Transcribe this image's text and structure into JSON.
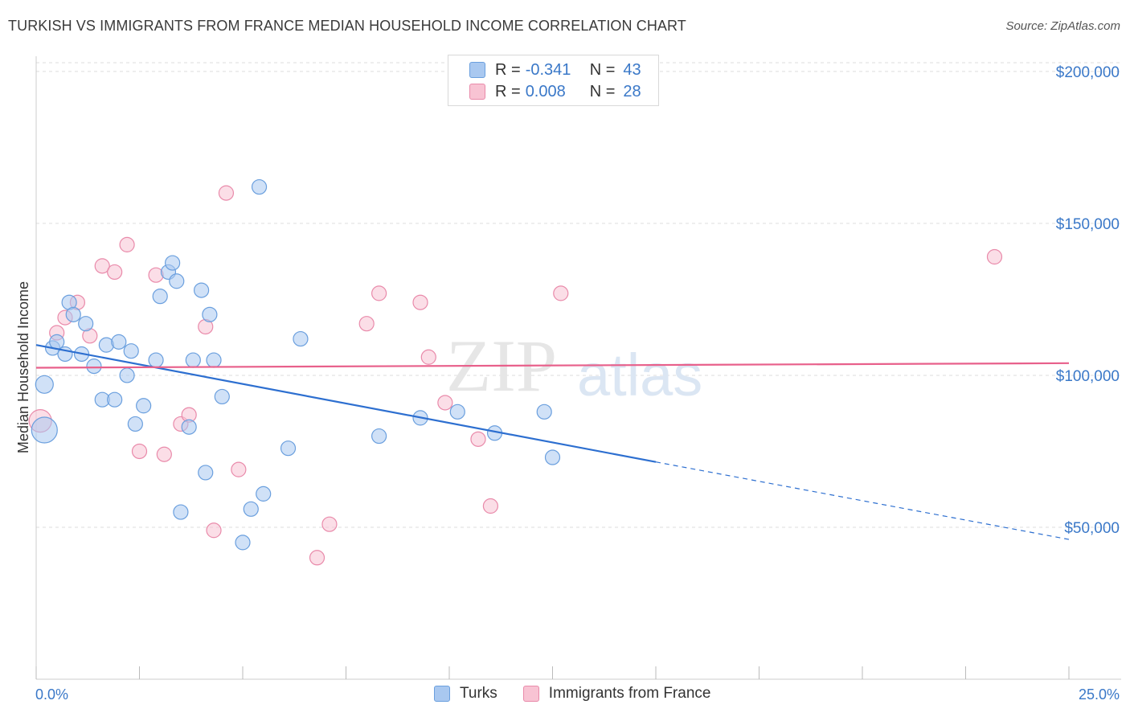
{
  "title": "TURKISH VS IMMIGRANTS FROM FRANCE MEDIAN HOUSEHOLD INCOME CORRELATION CHART",
  "source": "Source: ZipAtlas.com",
  "watermark": {
    "zip": "ZIP",
    "atlas": "atlas"
  },
  "legend": {
    "rows": [
      {
        "r_label": "R =",
        "r_value": "-0.341",
        "n_label": "N =",
        "n_value": "43",
        "color": "#a9c8f0",
        "border": "#6a9fde"
      },
      {
        "r_label": "R =",
        "r_value": "0.008",
        "n_label": "N =",
        "n_value": "28",
        "color": "#f8c3d3",
        "border": "#e98aaa"
      }
    ]
  },
  "bottom_legend": [
    {
      "label": "Turks",
      "color": "#a9c8f0",
      "border": "#6a9fde"
    },
    {
      "label": "Immigrants from France",
      "color": "#f8c3d3",
      "border": "#e98aaa"
    }
  ],
  "chart_data": {
    "type": "scatter",
    "xlabel": "",
    "ylabel": "Median Household Income",
    "xlim": [
      0,
      25
    ],
    "ylim": [
      0,
      205000
    ],
    "x_tick_labels": [
      "0.0%",
      "25.0%"
    ],
    "y_ticks": [
      {
        "value": 200000,
        "label": "$200,000"
      },
      {
        "value": 150000,
        "label": "$150,000"
      },
      {
        "value": 100000,
        "label": "$100,000"
      },
      {
        "value": 50000,
        "label": "$50,000"
      }
    ],
    "series": [
      {
        "name": "Turks",
        "color": "#a9c8f0",
        "stroke": "#6a9fde",
        "points": [
          [
            0.2,
            82000,
            16
          ],
          [
            0.2,
            97000,
            11
          ],
          [
            0.4,
            109000,
            9
          ],
          [
            0.5,
            111000,
            9
          ],
          [
            0.7,
            107000,
            9
          ],
          [
            0.8,
            124000,
            9
          ],
          [
            0.9,
            120000,
            9
          ],
          [
            1.1,
            107000,
            9
          ],
          [
            1.2,
            117000,
            9
          ],
          [
            1.4,
            103000,
            9
          ],
          [
            1.6,
            92000,
            9
          ],
          [
            1.7,
            110000,
            9
          ],
          [
            1.9,
            92000,
            9
          ],
          [
            2.0,
            111000,
            9
          ],
          [
            2.2,
            100000,
            9
          ],
          [
            2.3,
            108000,
            9
          ],
          [
            2.4,
            84000,
            9
          ],
          [
            2.6,
            90000,
            9
          ],
          [
            2.9,
            105000,
            9
          ],
          [
            3.0,
            126000,
            9
          ],
          [
            3.2,
            134000,
            9
          ],
          [
            3.3,
            137000,
            9
          ],
          [
            3.4,
            131000,
            9
          ],
          [
            3.5,
            55000,
            9
          ],
          [
            3.7,
            83000,
            9
          ],
          [
            3.8,
            105000,
            9
          ],
          [
            4.0,
            128000,
            9
          ],
          [
            4.1,
            68000,
            9
          ],
          [
            4.2,
            120000,
            9
          ],
          [
            4.3,
            105000,
            9
          ],
          [
            4.5,
            93000,
            9
          ],
          [
            5.0,
            45000,
            9
          ],
          [
            5.2,
            56000,
            9
          ],
          [
            5.4,
            162000,
            9
          ],
          [
            5.5,
            61000,
            9
          ],
          [
            6.1,
            76000,
            9
          ],
          [
            6.4,
            112000,
            9
          ],
          [
            8.3,
            80000,
            9
          ],
          [
            9.3,
            86000,
            9
          ],
          [
            10.2,
            88000,
            9
          ],
          [
            11.1,
            81000,
            9
          ],
          [
            12.3,
            88000,
            9
          ],
          [
            12.5,
            73000,
            9
          ]
        ]
      },
      {
        "name": "Immigrants from France",
        "color": "#f8c3d3",
        "stroke": "#e98aaa",
        "points": [
          [
            0.1,
            85000,
            14
          ],
          [
            0.5,
            114000,
            9
          ],
          [
            0.7,
            119000,
            9
          ],
          [
            1.0,
            124000,
            9
          ],
          [
            1.3,
            113000,
            9
          ],
          [
            1.6,
            136000,
            9
          ],
          [
            1.9,
            134000,
            9
          ],
          [
            2.2,
            143000,
            9
          ],
          [
            2.5,
            75000,
            9
          ],
          [
            2.9,
            133000,
            9
          ],
          [
            3.1,
            74000,
            9
          ],
          [
            3.5,
            84000,
            9
          ],
          [
            3.7,
            87000,
            9
          ],
          [
            4.1,
            116000,
            9
          ],
          [
            4.3,
            49000,
            9
          ],
          [
            4.6,
            160000,
            9
          ],
          [
            4.9,
            69000,
            9
          ],
          [
            6.8,
            40000,
            9
          ],
          [
            7.1,
            51000,
            9
          ],
          [
            8.0,
            117000,
            9
          ],
          [
            8.3,
            127000,
            9
          ],
          [
            9.3,
            124000,
            9
          ],
          [
            9.5,
            106000,
            9
          ],
          [
            9.9,
            91000,
            9
          ],
          [
            10.7,
            79000,
            9
          ],
          [
            11.0,
            57000,
            9
          ],
          [
            12.7,
            127000,
            9
          ],
          [
            23.2,
            139000,
            9
          ]
        ]
      }
    ],
    "trend_lines": [
      {
        "name": "Turks",
        "color": "#2d6fd0",
        "x": [
          0,
          15
        ],
        "y": [
          110000,
          71500
        ],
        "dashed_to": [
          25,
          46000
        ]
      },
      {
        "name": "Immigrants from France",
        "color": "#e8608b",
        "x": [
          0,
          25
        ],
        "y": [
          102500,
          104000
        ]
      }
    ]
  }
}
